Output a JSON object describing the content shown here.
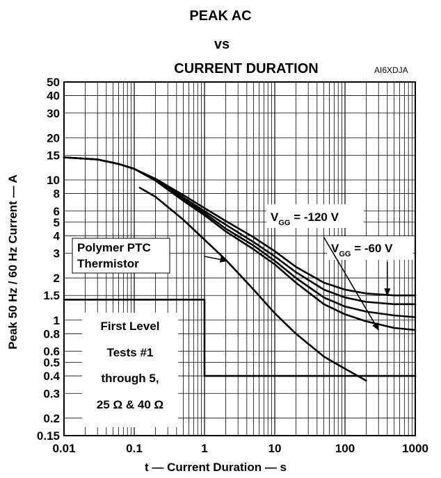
{
  "chart_data": {
    "type": "line",
    "title_lines": [
      "PEAK AC",
      "vs",
      "CURRENT DURATION"
    ],
    "figure_code": "AI6XDJA",
    "xlabel": "t — Current Duration — s",
    "ylabel": "Peak 50 Hz / 60 Hz Current — A",
    "x_scale": "log",
    "y_scale": "log",
    "xlim": [
      0.01,
      1000
    ],
    "ylim": [
      0.15,
      50
    ],
    "grid": true,
    "x_ticks": [
      {
        "v": 0.01,
        "label": "0.01"
      },
      {
        "v": 0.1,
        "label": "0.1"
      },
      {
        "v": 1,
        "label": "1"
      },
      {
        "v": 10,
        "label": "10"
      },
      {
        "v": 100,
        "label": "100"
      },
      {
        "v": 1000,
        "label": "1000"
      }
    ],
    "y_ticks": [
      {
        "v": 0.15,
        "label": "0.15"
      },
      {
        "v": 0.2,
        "label": "0.2"
      },
      {
        "v": 0.3,
        "label": "0.3"
      },
      {
        "v": 0.4,
        "label": "0.4"
      },
      {
        "v": 0.5,
        "label": "0.5"
      },
      {
        "v": 0.6,
        "label": "0.6"
      },
      {
        "v": 0.8,
        "label": "0.8"
      },
      {
        "v": 1,
        "label": "1"
      },
      {
        "v": 1.5,
        "label": "1.5"
      },
      {
        "v": 2,
        "label": "2"
      },
      {
        "v": 3,
        "label": "3"
      },
      {
        "v": 4,
        "label": "4"
      },
      {
        "v": 5,
        "label": "5"
      },
      {
        "v": 6,
        "label": "6"
      },
      {
        "v": 8,
        "label": "8"
      },
      {
        "v": 10,
        "label": "10"
      },
      {
        "v": 15,
        "label": "15"
      },
      {
        "v": 20,
        "label": "20"
      },
      {
        "v": 30,
        "label": "30"
      },
      {
        "v": 40,
        "label": "40"
      },
      {
        "v": 50,
        "label": "50"
      }
    ],
    "series": [
      {
        "x": [
          0.01,
          0.03,
          0.06,
          0.1,
          0.2,
          0.5,
          1,
          2,
          5,
          10,
          20,
          50,
          100,
          200,
          500,
          1000
        ],
        "y": [
          14.5,
          14,
          13,
          12,
          10.2,
          7.8,
          6.3,
          5.1,
          3.9,
          3.1,
          2.4,
          1.85,
          1.65,
          1.55,
          1.5,
          1.5
        ]
      },
      {
        "x": [
          0.01,
          0.03,
          0.06,
          0.1,
          0.2,
          0.5,
          1,
          2,
          5,
          10,
          20,
          50,
          100,
          200,
          500,
          1000
        ],
        "y": [
          14.5,
          14,
          13,
          12,
          10.1,
          7.5,
          6,
          4.8,
          3.6,
          2.85,
          2.2,
          1.65,
          1.45,
          1.35,
          1.3,
          1.3
        ]
      },
      {
        "x": [
          0.01,
          0.03,
          0.06,
          0.1,
          0.2,
          0.5,
          1,
          2,
          5,
          10,
          20,
          50,
          100,
          200,
          500,
          1000
        ],
        "y": [
          14.5,
          14,
          13,
          12,
          10,
          7.3,
          5.8,
          4.5,
          3.4,
          2.65,
          2,
          1.45,
          1.25,
          1.15,
          1.08,
          1.05
        ]
      },
      {
        "x": [
          0.01,
          0.03,
          0.06,
          0.1,
          0.2,
          0.5,
          1,
          2,
          5,
          10,
          20,
          50,
          100,
          200,
          500,
          1000
        ],
        "y": [
          14.5,
          14,
          13,
          12,
          9.9,
          7.1,
          5.6,
          4.3,
          3.2,
          2.5,
          1.85,
          1.3,
          1.1,
          0.98,
          0.88,
          0.85
        ]
      },
      {
        "x": [
          0.12,
          0.2,
          0.5,
          1,
          2,
          5,
          10,
          20,
          50,
          100,
          200
        ],
        "y": [
          8.8,
          7.6,
          5.2,
          3.75,
          2.7,
          1.65,
          1.12,
          0.8,
          0.55,
          0.45,
          0.37
        ]
      },
      {
        "x": [
          0.01,
          1,
          1,
          1000
        ],
        "y": [
          1.4,
          1.4,
          0.4,
          0.4
        ]
      }
    ],
    "annotations": [
      {
        "text": "V",
        "sub": "GG",
        "rest": " = -120 V"
      },
      {
        "text": "V",
        "sub": "GG",
        "rest": " = -60 V"
      },
      {
        "lines": [
          "Polymer PTC",
          "Thermistor"
        ]
      },
      {
        "lines": [
          "First Level",
          "Tests #1",
          "through 5,",
          "25 Ω & 40 Ω"
        ]
      }
    ]
  }
}
